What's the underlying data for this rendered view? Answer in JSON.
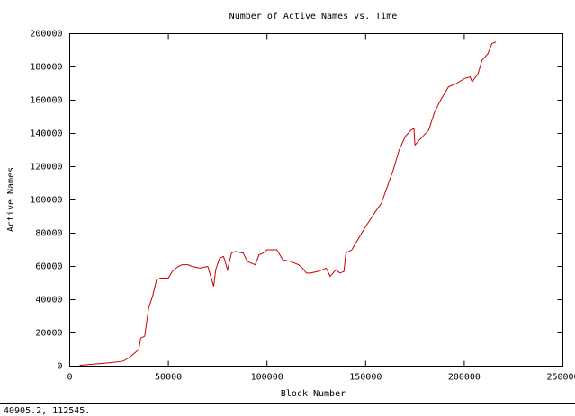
{
  "chart_data": {
    "type": "line",
    "title": "Number of Active Names vs. Time",
    "x_label": "Block Number",
    "y_label": "Active Names",
    "x": [
      5000,
      10000,
      20000,
      27000,
      30000,
      33000,
      35000,
      36000,
      38000,
      40000,
      42000,
      44000,
      46000,
      50000,
      52000,
      55000,
      57000,
      60000,
      62000,
      66000,
      70000,
      72000,
      73000,
      74000,
      76000,
      78000,
      80000,
      82000,
      84000,
      88000,
      90000,
      94000,
      96000,
      98000,
      100000,
      105000,
      108000,
      112000,
      116000,
      118000,
      120000,
      122000,
      126000,
      130000,
      132000,
      135000,
      137000,
      139000,
      140000,
      143000,
      146000,
      150000,
      155000,
      158000,
      161000,
      164000,
      167000,
      170000,
      173000,
      174500,
      175000,
      178000,
      182000,
      185000,
      188000,
      192000,
      196000,
      200000,
      203000,
      204000,
      207000,
      209000,
      212000,
      214000,
      216000
    ],
    "series": [
      {
        "name": "Active Names",
        "color": "#cc0000",
        "values": [
          500,
          1000,
          2000,
          3000,
          5000,
          8000,
          10000,
          17000,
          18000,
          35000,
          42000,
          52000,
          53000,
          53000,
          57000,
          60000,
          61000,
          61000,
          60000,
          59000,
          60000,
          52000,
          48000,
          58000,
          65000,
          66000,
          58000,
          68000,
          69000,
          68000,
          63000,
          61000,
          67000,
          68000,
          70000,
          70000,
          64000,
          63000,
          61000,
          59000,
          56000,
          56000,
          57000,
          59000,
          54000,
          58000,
          56000,
          57000,
          68000,
          70000,
          76000,
          84000,
          93000,
          98000,
          108000,
          118000,
          130000,
          138000,
          142000,
          143000,
          133000,
          137000,
          142000,
          153000,
          160000,
          168000,
          170000,
          173000,
          174000,
          171000,
          176000,
          184000,
          188000,
          194000,
          195000
        ]
      }
    ],
    "xlim": [
      0,
      250000
    ],
    "xticks": [
      0,
      50000,
      100000,
      150000,
      200000,
      250000
    ],
    "ylim": [
      0,
      200000
    ],
    "yticks": [
      0,
      20000,
      40000,
      60000,
      80000,
      100000,
      120000,
      140000,
      160000,
      180000,
      200000
    ],
    "status": "40905.2,  112545."
  }
}
